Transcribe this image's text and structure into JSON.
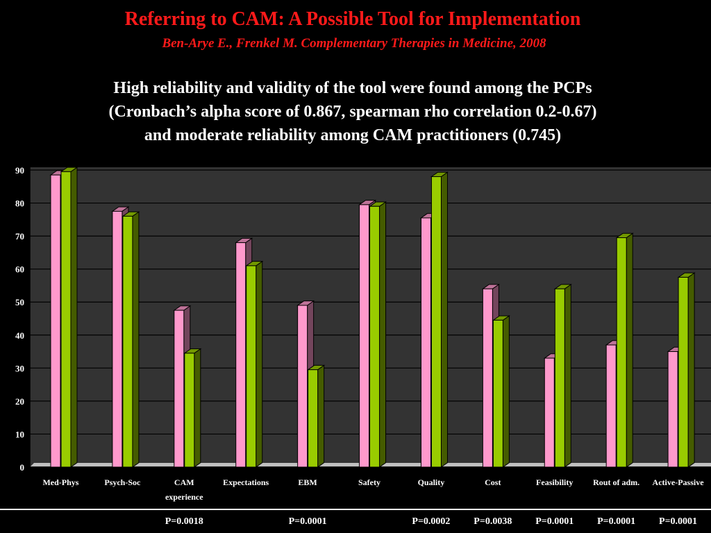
{
  "slide": {
    "title": "Referring to CAM: A Possible Tool for Implementation",
    "subtitle": "Ben-Arye E., Frenkel M. Complementary Therapies in Medicine, 2008",
    "description_lines": [
      "High reliability and validity of the tool were found among the PCPs",
      "(Cronbach’s alpha score of 0.867, spearman rho correlation 0.2-0.67)",
      "and moderate reliability among CAM practitioners (0.745)"
    ]
  },
  "chart_data": {
    "type": "bar",
    "categories": [
      "Med-Phys",
      "Psych-Soc",
      "CAM experience",
      "Expectations",
      "EBM",
      "Safety",
      "Quality",
      "Cost",
      "Feasibility",
      "Rout of adm.",
      "Active-Passive"
    ],
    "category_label_lines": [
      [
        "Med-Phys"
      ],
      [
        "Psych-Soc"
      ],
      [
        "CAM",
        "experience"
      ],
      [
        "Expectations"
      ],
      [
        "EBM"
      ],
      [
        "Safety"
      ],
      [
        "Quality"
      ],
      [
        "Cost"
      ],
      [
        "Feasibility"
      ],
      [
        "Rout of adm."
      ],
      [
        "Active-Passive"
      ]
    ],
    "series": [
      {
        "values": [
          88.5,
          77.5,
          47.5,
          68,
          49,
          79.5,
          75.5,
          54,
          33,
          37,
          35
        ],
        "color": "#ff99cc"
      },
      {
        "values": [
          89.5,
          76,
          34.5,
          61,
          29.5,
          79,
          88,
          44.5,
          54,
          69.5,
          57.5
        ],
        "color": "#99cc00"
      }
    ],
    "ylim": [
      0,
      90
    ],
    "yticks": [
      0,
      10,
      20,
      30,
      40,
      50,
      60,
      70,
      80,
      90
    ],
    "grid": true,
    "plot_background": "#333333",
    "floor_color": "#c0c0c0"
  },
  "p_values": [
    {
      "category": "Med-Phys",
      "text": ""
    },
    {
      "category": "Psych-Soc",
      "text": ""
    },
    {
      "category": "CAM experience",
      "text": "P=0.0018"
    },
    {
      "category": "Expectations",
      "text": ""
    },
    {
      "category": "EBM",
      "text": "P=0.0001"
    },
    {
      "category": "Safety",
      "text": ""
    },
    {
      "category": "Quality",
      "text": "P=0.0002"
    },
    {
      "category": "Cost",
      "text": "P=0.0038"
    },
    {
      "category": "Feasibility",
      "text": "P=0.0001"
    },
    {
      "category": "Rout of adm.",
      "text": "P=0.0001"
    },
    {
      "category": "Active-Passive",
      "text": "P=0.0001"
    }
  ]
}
